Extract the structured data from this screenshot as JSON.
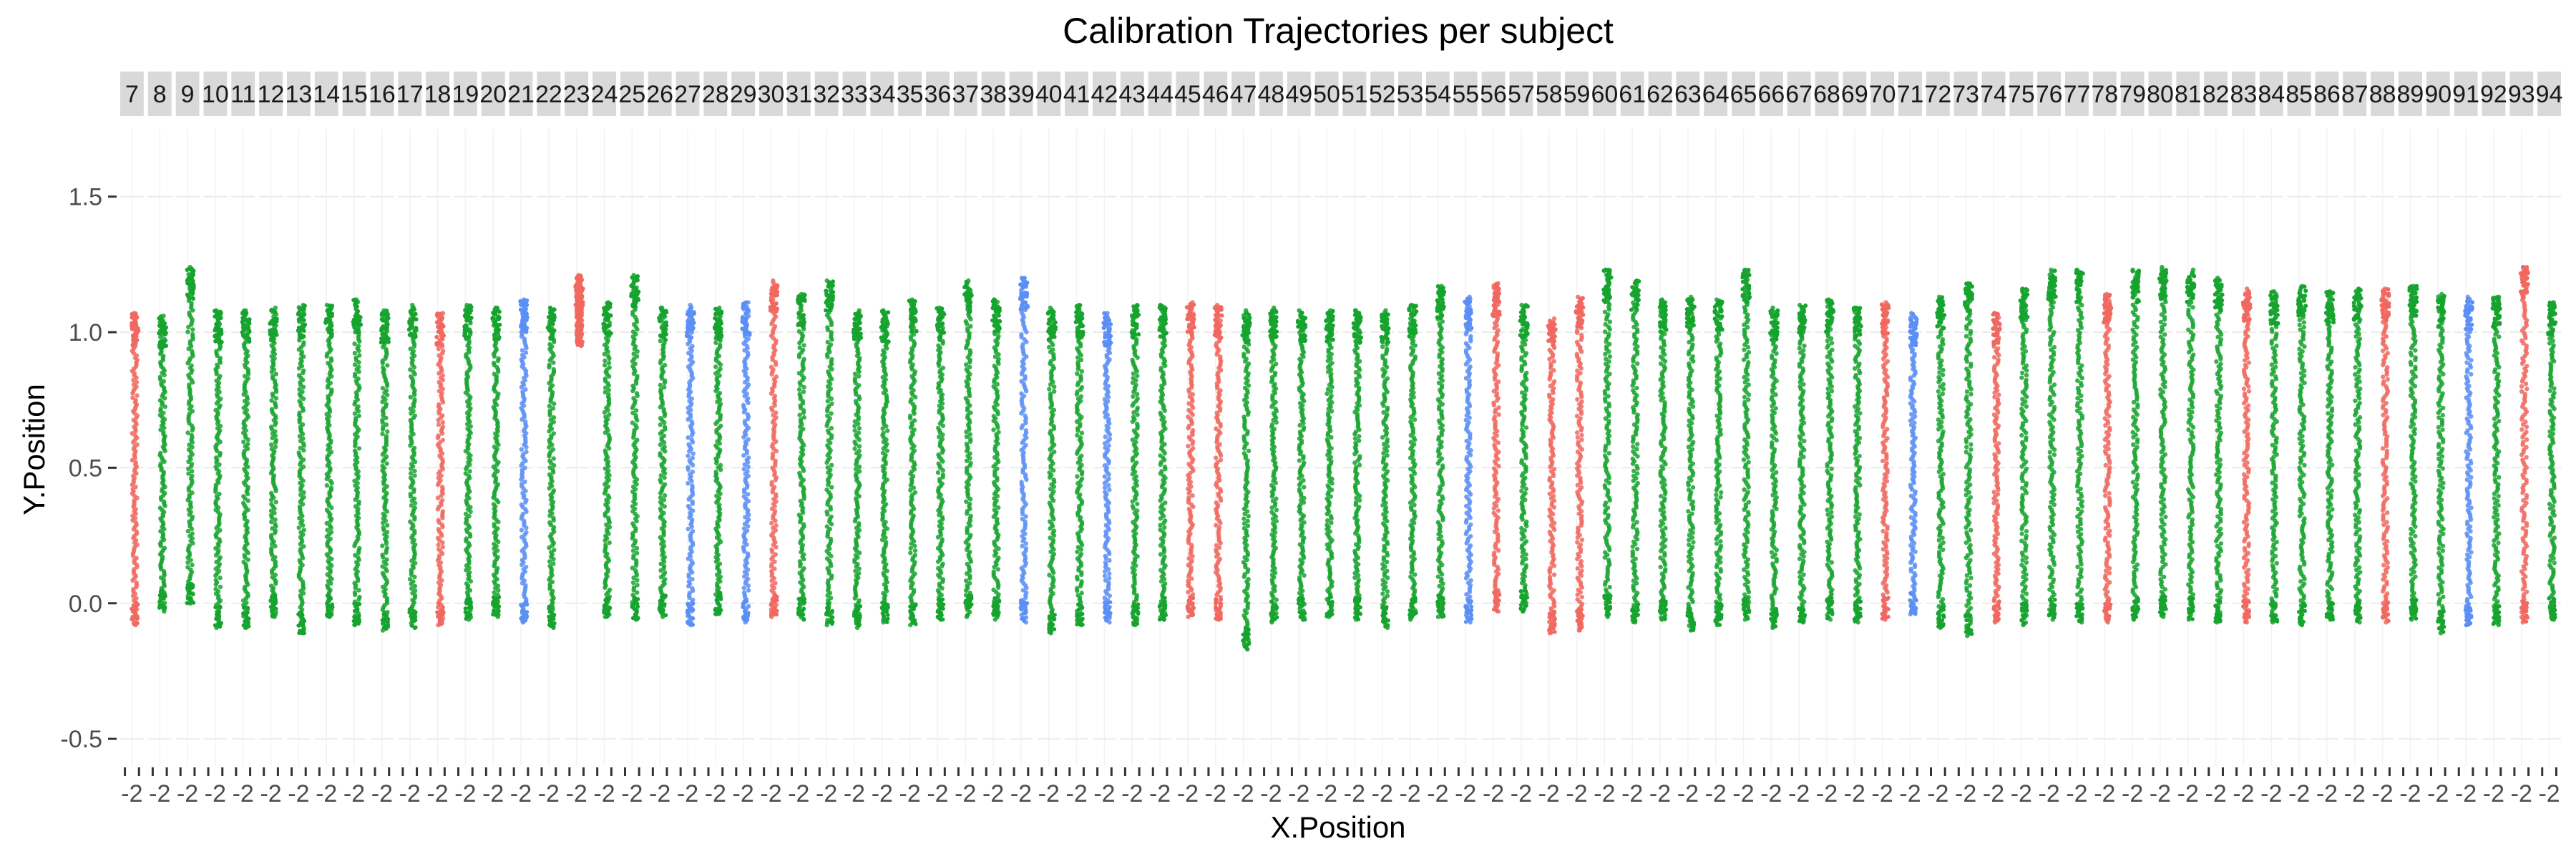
{
  "chart_data": {
    "type": "scatter",
    "title": "Calibration Trajectories per subject",
    "xlabel": "X.Position",
    "ylabel": "Y.Position",
    "ylim": [
      -0.6,
      1.75
    ],
    "yticks": [
      -0.5,
      0.0,
      0.5,
      1.0,
      1.5
    ],
    "ytick_labels": [
      "-0.5",
      "0.0",
      "0.5",
      "1.0",
      "1.5"
    ],
    "xtick_label": "-2",
    "grid": true,
    "legend": "none",
    "colors": {
      "group_red": "#f0685f",
      "group_green": "#16a32e",
      "group_blue": "#5b8ff5"
    },
    "facet_labels": [
      "7",
      "8",
      "9",
      "10",
      "11",
      "12",
      "13",
      "14",
      "15",
      "16",
      "17",
      "18",
      "19",
      "20",
      "21",
      "22",
      "23",
      "24",
      "25",
      "26",
      "27",
      "28",
      "29",
      "30",
      "31",
      "32",
      "33",
      "34",
      "35",
      "36",
      "37",
      "38",
      "39",
      "40",
      "41",
      "42",
      "43",
      "44",
      "45",
      "46",
      "47",
      "48",
      "49",
      "50",
      "51",
      "52",
      "53",
      "54",
      "55",
      "56",
      "57",
      "58",
      "59",
      "60",
      "61",
      "62",
      "63",
      "64",
      "65",
      "66",
      "67",
      "68",
      "69",
      "70",
      "71",
      "72",
      "73",
      "74",
      "75",
      "76",
      "77",
      "78",
      "79",
      "80",
      "81",
      "82",
      "83",
      "84",
      "85",
      "86",
      "87",
      "88",
      "89",
      "90",
      "91",
      "92",
      "93",
      "94"
    ],
    "subjects": [
      {
        "id": "7",
        "group": "red",
        "y_min": -0.08,
        "y_max": 1.07
      },
      {
        "id": "8",
        "group": "green",
        "y_min": -0.03,
        "y_max": 1.06
      },
      {
        "id": "9",
        "group": "green",
        "y_min": 0.0,
        "y_max": 1.24
      },
      {
        "id": "10",
        "group": "green",
        "y_min": -0.09,
        "y_max": 1.08
      },
      {
        "id": "11",
        "group": "green",
        "y_min": -0.09,
        "y_max": 1.08
      },
      {
        "id": "12",
        "group": "green",
        "y_min": -0.05,
        "y_max": 1.09
      },
      {
        "id": "13",
        "group": "green",
        "y_min": -0.11,
        "y_max": 1.1
      },
      {
        "id": "14",
        "group": "green",
        "y_min": -0.05,
        "y_max": 1.1
      },
      {
        "id": "15",
        "group": "green",
        "y_min": -0.08,
        "y_max": 1.12
      },
      {
        "id": "16",
        "group": "green",
        "y_min": -0.1,
        "y_max": 1.08
      },
      {
        "id": "17",
        "group": "green",
        "y_min": -0.09,
        "y_max": 1.1
      },
      {
        "id": "18",
        "group": "red",
        "y_min": -0.08,
        "y_max": 1.07
      },
      {
        "id": "19",
        "group": "green",
        "y_min": -0.06,
        "y_max": 1.1
      },
      {
        "id": "20",
        "group": "green",
        "y_min": -0.05,
        "y_max": 1.09
      },
      {
        "id": "21",
        "group": "blue",
        "y_min": -0.07,
        "y_max": 1.12
      },
      {
        "id": "22",
        "group": "green",
        "y_min": -0.09,
        "y_max": 1.09
      },
      {
        "id": "23",
        "group": "red",
        "y_min": 0.95,
        "y_max": 1.21
      },
      {
        "id": "24",
        "group": "green",
        "y_min": -0.05,
        "y_max": 1.11
      },
      {
        "id": "25",
        "group": "green",
        "y_min": -0.06,
        "y_max": 1.21
      },
      {
        "id": "26",
        "group": "green",
        "y_min": -0.05,
        "y_max": 1.09
      },
      {
        "id": "27",
        "group": "blue",
        "y_min": -0.08,
        "y_max": 1.1
      },
      {
        "id": "28",
        "group": "green",
        "y_min": -0.04,
        "y_max": 1.09
      },
      {
        "id": "29",
        "group": "blue",
        "y_min": -0.07,
        "y_max": 1.11
      },
      {
        "id": "30",
        "group": "red",
        "y_min": -0.05,
        "y_max": 1.19
      },
      {
        "id": "31",
        "group": "green",
        "y_min": -0.06,
        "y_max": 1.14
      },
      {
        "id": "32",
        "group": "green",
        "y_min": -0.08,
        "y_max": 1.19
      },
      {
        "id": "33",
        "group": "green",
        "y_min": -0.09,
        "y_max": 1.08
      },
      {
        "id": "34",
        "group": "green",
        "y_min": -0.07,
        "y_max": 1.08
      },
      {
        "id": "35",
        "group": "green",
        "y_min": -0.08,
        "y_max": 1.12
      },
      {
        "id": "36",
        "group": "green",
        "y_min": -0.06,
        "y_max": 1.09
      },
      {
        "id": "37",
        "group": "green",
        "y_min": -0.05,
        "y_max": 1.19
      },
      {
        "id": "38",
        "group": "green",
        "y_min": -0.06,
        "y_max": 1.12
      },
      {
        "id": "39",
        "group": "blue",
        "y_min": -0.07,
        "y_max": 1.2
      },
      {
        "id": "40",
        "group": "green",
        "y_min": -0.11,
        "y_max": 1.09
      },
      {
        "id": "41",
        "group": "green",
        "y_min": -0.08,
        "y_max": 1.1
      },
      {
        "id": "42",
        "group": "blue",
        "y_min": -0.07,
        "y_max": 1.07
      },
      {
        "id": "43",
        "group": "green",
        "y_min": -0.08,
        "y_max": 1.1
      },
      {
        "id": "44",
        "group": "green",
        "y_min": -0.06,
        "y_max": 1.1
      },
      {
        "id": "45",
        "group": "red",
        "y_min": -0.05,
        "y_max": 1.11
      },
      {
        "id": "46",
        "group": "red",
        "y_min": -0.06,
        "y_max": 1.1
      },
      {
        "id": "47",
        "group": "green",
        "y_min": -0.17,
        "y_max": 1.08
      },
      {
        "id": "48",
        "group": "green",
        "y_min": -0.07,
        "y_max": 1.09
      },
      {
        "id": "49",
        "group": "green",
        "y_min": -0.06,
        "y_max": 1.08
      },
      {
        "id": "50",
        "group": "green",
        "y_min": -0.05,
        "y_max": 1.08
      },
      {
        "id": "51",
        "group": "green",
        "y_min": -0.06,
        "y_max": 1.08
      },
      {
        "id": "52",
        "group": "green",
        "y_min": -0.09,
        "y_max": 1.08
      },
      {
        "id": "53",
        "group": "green",
        "y_min": -0.06,
        "y_max": 1.1
      },
      {
        "id": "54",
        "group": "green",
        "y_min": -0.05,
        "y_max": 1.17
      },
      {
        "id": "55",
        "group": "blue",
        "y_min": -0.07,
        "y_max": 1.13
      },
      {
        "id": "56",
        "group": "red",
        "y_min": -0.03,
        "y_max": 1.18
      },
      {
        "id": "57",
        "group": "green",
        "y_min": -0.03,
        "y_max": 1.1
      },
      {
        "id": "58",
        "group": "red",
        "y_min": -0.11,
        "y_max": 1.05
      },
      {
        "id": "59",
        "group": "red",
        "y_min": -0.1,
        "y_max": 1.13
      },
      {
        "id": "60",
        "group": "green",
        "y_min": -0.05,
        "y_max": 1.23
      },
      {
        "id": "61",
        "group": "green",
        "y_min": -0.07,
        "y_max": 1.19
      },
      {
        "id": "62",
        "group": "green",
        "y_min": -0.06,
        "y_max": 1.12
      },
      {
        "id": "63",
        "group": "green",
        "y_min": -0.1,
        "y_max": 1.13
      },
      {
        "id": "64",
        "group": "green",
        "y_min": -0.08,
        "y_max": 1.12
      },
      {
        "id": "65",
        "group": "green",
        "y_min": -0.06,
        "y_max": 1.23
      },
      {
        "id": "66",
        "group": "green",
        "y_min": -0.09,
        "y_max": 1.09
      },
      {
        "id": "67",
        "group": "green",
        "y_min": -0.07,
        "y_max": 1.1
      },
      {
        "id": "68",
        "group": "green",
        "y_min": -0.06,
        "y_max": 1.12
      },
      {
        "id": "69",
        "group": "green",
        "y_min": -0.07,
        "y_max": 1.09
      },
      {
        "id": "70",
        "group": "red",
        "y_min": -0.06,
        "y_max": 1.11
      },
      {
        "id": "71",
        "group": "blue",
        "y_min": -0.04,
        "y_max": 1.07
      },
      {
        "id": "72",
        "group": "green",
        "y_min": -0.09,
        "y_max": 1.13
      },
      {
        "id": "73",
        "group": "green",
        "y_min": -0.12,
        "y_max": 1.18
      },
      {
        "id": "74",
        "group": "red",
        "y_min": -0.07,
        "y_max": 1.07
      },
      {
        "id": "75",
        "group": "green",
        "y_min": -0.08,
        "y_max": 1.16
      },
      {
        "id": "76",
        "group": "green",
        "y_min": -0.06,
        "y_max": 1.23
      },
      {
        "id": "77",
        "group": "green",
        "y_min": -0.07,
        "y_max": 1.23
      },
      {
        "id": "78",
        "group": "red",
        "y_min": -0.07,
        "y_max": 1.14
      },
      {
        "id": "79",
        "group": "green",
        "y_min": -0.06,
        "y_max": 1.23
      },
      {
        "id": "80",
        "group": "green",
        "y_min": -0.05,
        "y_max": 1.24
      },
      {
        "id": "81",
        "group": "green",
        "y_min": -0.06,
        "y_max": 1.23
      },
      {
        "id": "82",
        "group": "green",
        "y_min": -0.07,
        "y_max": 1.2
      },
      {
        "id": "83",
        "group": "red",
        "y_min": -0.07,
        "y_max": 1.16
      },
      {
        "id": "84",
        "group": "green",
        "y_min": -0.07,
        "y_max": 1.15
      },
      {
        "id": "85",
        "group": "green",
        "y_min": -0.08,
        "y_max": 1.17
      },
      {
        "id": "86",
        "group": "green",
        "y_min": -0.06,
        "y_max": 1.15
      },
      {
        "id": "87",
        "group": "green",
        "y_min": -0.07,
        "y_max": 1.16
      },
      {
        "id": "88",
        "group": "red",
        "y_min": -0.07,
        "y_max": 1.16
      },
      {
        "id": "89",
        "group": "green",
        "y_min": -0.06,
        "y_max": 1.17
      },
      {
        "id": "90",
        "group": "green",
        "y_min": -0.11,
        "y_max": 1.14
      },
      {
        "id": "91",
        "group": "blue",
        "y_min": -0.08,
        "y_max": 1.13
      },
      {
        "id": "92",
        "group": "green",
        "y_min": -0.08,
        "y_max": 1.13
      },
      {
        "id": "93",
        "group": "red",
        "y_min": -0.07,
        "y_max": 1.24
      },
      {
        "id": "94",
        "group": "green",
        "y_min": -0.06,
        "y_max": 1.11
      }
    ]
  }
}
